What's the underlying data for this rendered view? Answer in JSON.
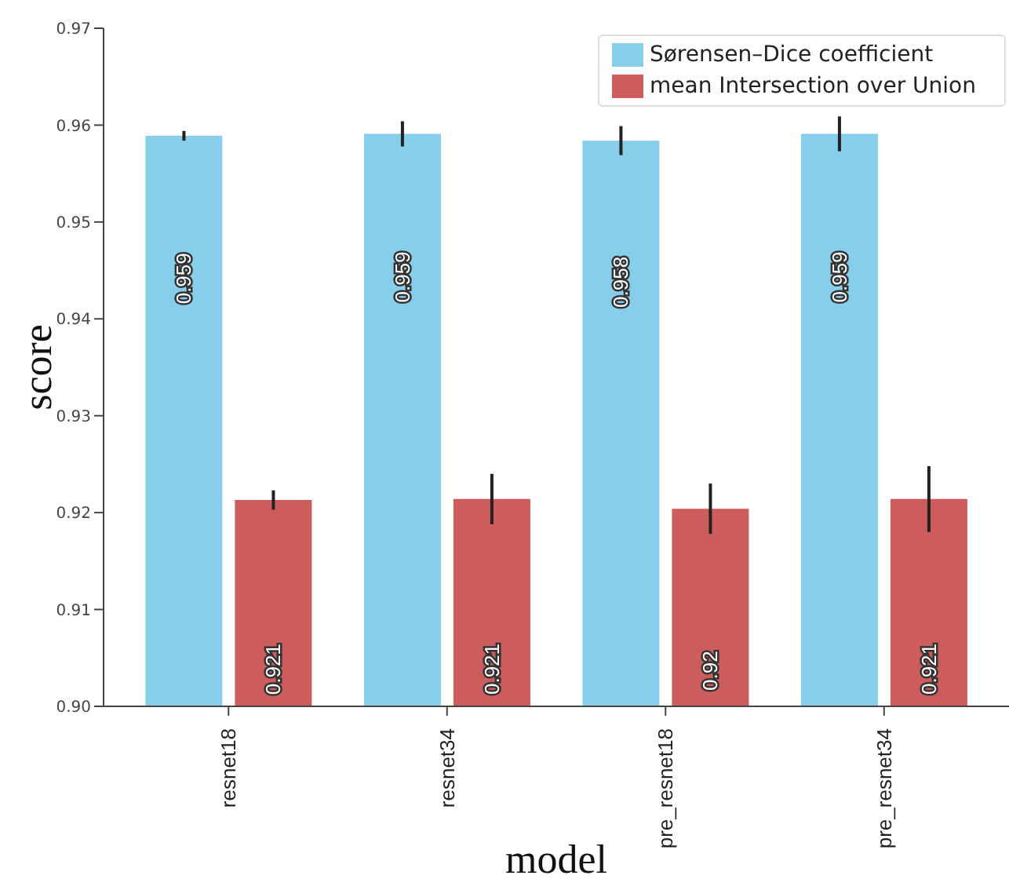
{
  "chart_data": {
    "type": "bar",
    "xlabel": "model",
    "ylabel": "score",
    "categories": [
      "resnet18",
      "resnet34",
      "pre_resnet18",
      "pre_resnet34"
    ],
    "series": [
      {
        "name": "Sørensen–Dice coefficient",
        "color": "#87ceeb",
        "values": [
          0.9589,
          0.9591,
          0.9584,
          0.9591
        ],
        "errors": [
          0.0005,
          0.0013,
          0.0015,
          0.0018
        ],
        "value_labels": [
          "0.959",
          "0.959",
          "0.958",
          "0.959"
        ]
      },
      {
        "name": "mean Intersection over Union",
        "color": "#cd5c5c",
        "values": [
          0.9213,
          0.9214,
          0.9204,
          0.9214
        ],
        "errors": [
          0.001,
          0.0026,
          0.0026,
          0.0034
        ],
        "value_labels": [
          "0.921",
          "0.921",
          "0.92",
          "0.921"
        ]
      }
    ],
    "ylim": [
      0.9,
      0.97
    ],
    "yticks": [
      {
        "value": 0.9,
        "label": "0.90"
      },
      0.91,
      0.92,
      0.93,
      0.94,
      0.95,
      0.96,
      0.97
    ],
    "legend": "top right"
  }
}
